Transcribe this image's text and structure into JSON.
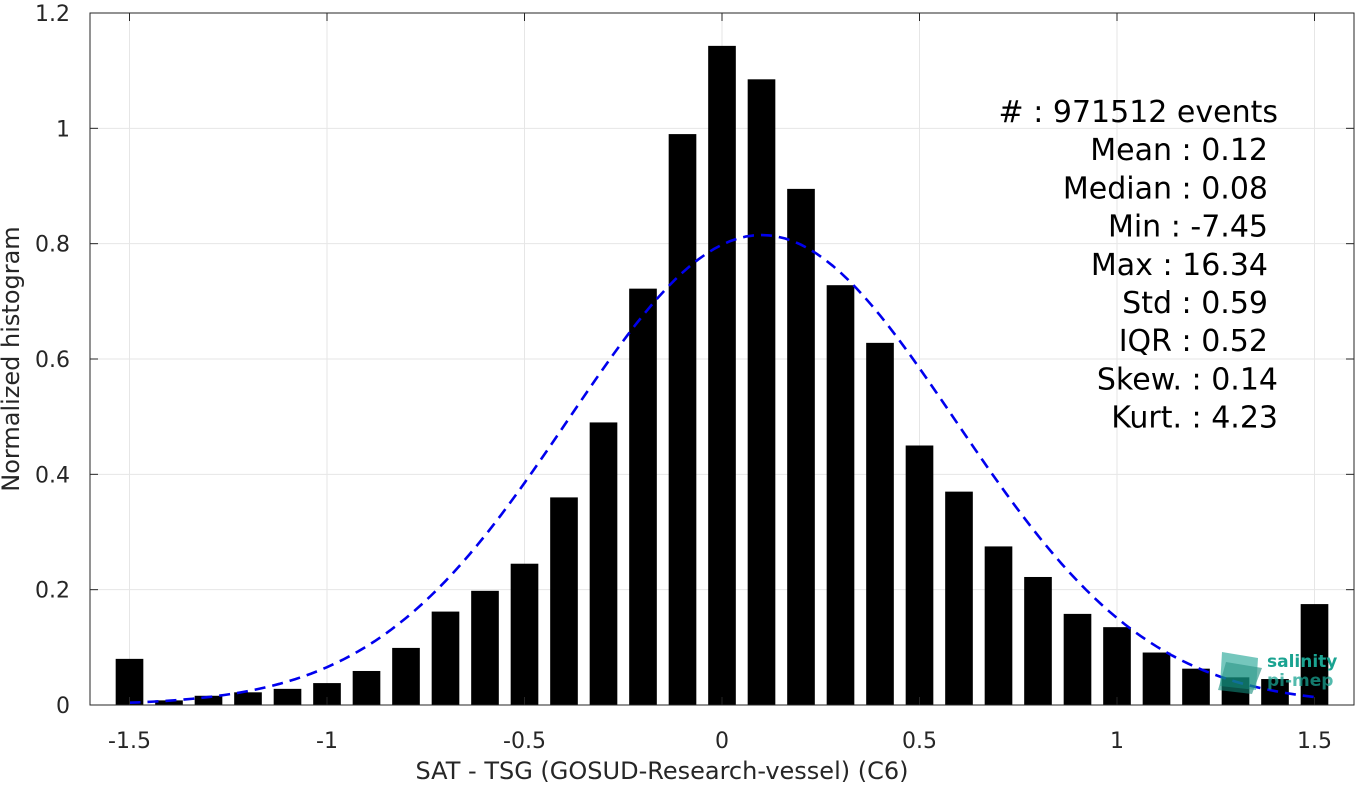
{
  "chart_data": {
    "type": "bar",
    "xlabel": "SAT - TSG (GOSUD-Research-vessel) (C6)",
    "ylabel": "Normalized histogram",
    "xlim": [
      -1.6,
      1.6
    ],
    "ylim": [
      0,
      1.2
    ],
    "grid": true,
    "x_ticks": [
      -1.5,
      -1,
      -0.5,
      0,
      0.5,
      1,
      1.5
    ],
    "x_tick_labels": [
      "-1.5",
      "-1",
      "-0.5",
      "0",
      "0.5",
      "1",
      "1.5"
    ],
    "y_ticks": [
      0,
      0.2,
      0.4,
      0.6,
      0.8,
      1,
      1.2
    ],
    "y_tick_labels": [
      "0",
      "0.2",
      "0.4",
      "0.6",
      "0.8",
      "1",
      "1.2"
    ],
    "bar_width": 0.07,
    "bar_color": "#000000",
    "bars": {
      "x": [
        -1.5,
        -1.4,
        -1.3,
        -1.2,
        -1.1,
        -1.0,
        -0.9,
        -0.8,
        -0.7,
        -0.6,
        -0.5,
        -0.4,
        -0.3,
        -0.2,
        -0.1,
        0.0,
        0.1,
        0.2,
        0.3,
        0.4,
        0.5,
        0.6,
        0.7,
        0.8,
        0.9,
        1.0,
        1.1,
        1.2,
        1.3,
        1.4,
        1.5
      ],
      "values": [
        0.08,
        0.008,
        0.016,
        0.022,
        0.028,
        0.038,
        0.059,
        0.099,
        0.162,
        0.198,
        0.245,
        0.36,
        0.49,
        0.722,
        0.99,
        1.143,
        1.085,
        0.895,
        0.728,
        0.628,
        0.45,
        0.37,
        0.275,
        0.222,
        0.158,
        0.135,
        0.091,
        0.063,
        0.048,
        0.045,
        0.175
      ]
    },
    "fit_curve": {
      "style": "dashed",
      "color": "#0000ee",
      "mean": 0.1,
      "std": 0.49,
      "peak": 0.815,
      "x_range": [
        -1.5,
        1.5
      ]
    },
    "annotations": [
      "#  : 971512 events",
      "Mean : 0.12",
      "Median : 0.08",
      "Min : -7.45",
      "Max : 16.34",
      "Std : 0.59",
      "IQR : 0.52",
      "Skew. : 0.14",
      "Kurt. : 4.23"
    ],
    "logo": {
      "line1": "salinity",
      "line2": "pi-mep",
      "color": "#1aa391"
    }
  }
}
